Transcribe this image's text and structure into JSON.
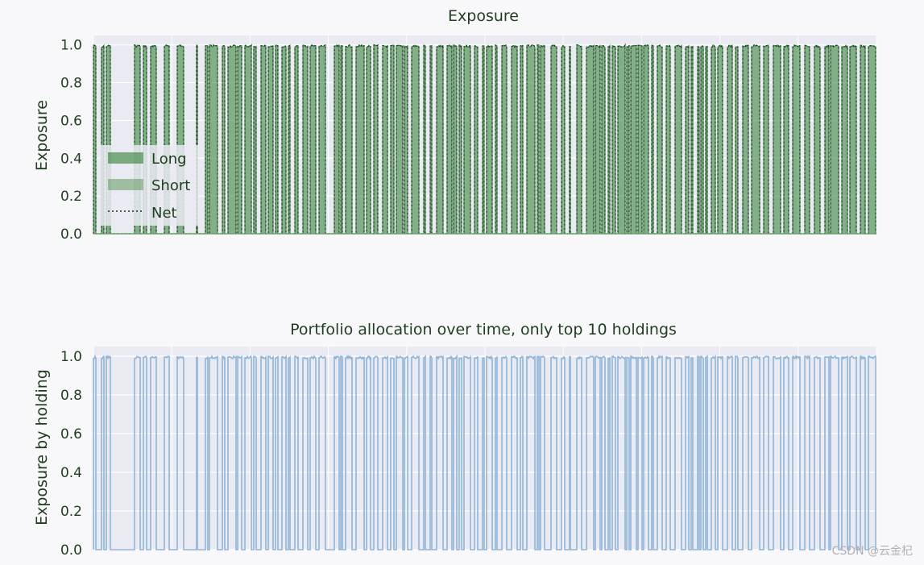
{
  "chart_data": [
    {
      "type": "area",
      "title": "Exposure",
      "xlabel": "",
      "ylabel": "Exposure",
      "ylim": [
        0,
        1.05
      ],
      "yticks": [
        "0.0",
        "0.2",
        "0.4",
        "0.6",
        "0.8",
        "1.0"
      ],
      "grid": true,
      "legend": {
        "placement": "lower-left",
        "entries": [
          "Long",
          "Short",
          "Net"
        ]
      },
      "series": [
        {
          "name": "Long",
          "color": "#2e7d32",
          "pattern": "binary-switching",
          "high_value": 1.0,
          "low_value": 0.0
        },
        {
          "name": "Short",
          "color": "#6a9f6a",
          "values_constant": 0.0
        },
        {
          "name": "Net",
          "color": "#1b2e1b",
          "style": "dotted",
          "same_as": "Long"
        }
      ]
    },
    {
      "type": "line",
      "title": "Portfolio allocation over time, only top 10 holdings",
      "xlabel": "",
      "ylabel": "Exposure by holding",
      "ylim": [
        0,
        1.05
      ],
      "yticks": [
        "0.0",
        "0.2",
        "0.4",
        "0.6",
        "0.8",
        "1.0"
      ],
      "grid": true,
      "series": [
        {
          "color": "#8fb5d9",
          "pattern": "binary-switching",
          "high_value": 1.0,
          "low_value": 0.0
        }
      ]
    }
  ],
  "watermark": "CSDN @云金杞"
}
